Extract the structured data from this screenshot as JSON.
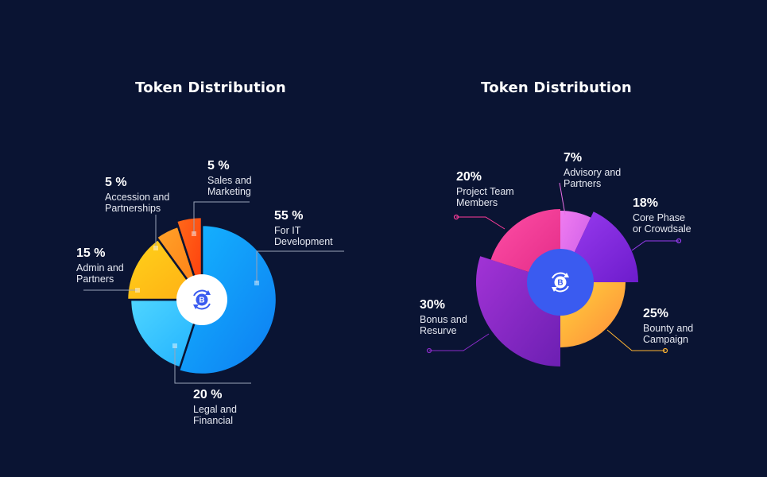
{
  "charts": [
    {
      "title": "Token Distribution"
    },
    {
      "title": "Token Distribution"
    }
  ],
  "colors": {
    "background": "#0a1433",
    "badge_blue": "#3a5bf0"
  },
  "chart_data": [
    {
      "type": "pie",
      "title": "Token Distribution",
      "unit": "%",
      "slices": [
        {
          "value": 55,
          "pct_label": "55 %",
          "label": [
            "For IT",
            "Development"
          ],
          "color": "#1a9bff"
        },
        {
          "value": 20,
          "pct_label": "20 %",
          "label": [
            "Legal and",
            "Financial"
          ],
          "color": "#35c8ff"
        },
        {
          "value": 15,
          "pct_label": "15 %",
          "label": [
            "Admin and",
            "Partners"
          ],
          "color": "#ffc21a"
        },
        {
          "value": 5,
          "pct_label": "5 %",
          "label": [
            "Accession and",
            "Partnerships"
          ],
          "color": "#ff8a1c"
        },
        {
          "value": 5,
          "pct_label": "5 %",
          "label": [
            "Sales and",
            "Marketing"
          ],
          "color": "#ff4f12"
        }
      ]
    },
    {
      "type": "pie",
      "title": "Token Distribution",
      "unit": "%",
      "slices": [
        {
          "value": 7,
          "pct_label": "7%",
          "label": [
            "Advisory and",
            "Partners"
          ],
          "color": "#e86ee6"
        },
        {
          "value": 18,
          "pct_label": "18%",
          "label": [
            "Core Phase",
            "or Crowdsale"
          ],
          "color": "#8a2ee8"
        },
        {
          "value": 25,
          "pct_label": "25%",
          "label": [
            "Bounty and",
            "Campaign"
          ],
          "color": "#ffb432"
        },
        {
          "value": 30,
          "pct_label": "30%",
          "label": [
            "Bonus and",
            "Resurve"
          ],
          "color": "#8b2bc9"
        },
        {
          "value": 20,
          "pct_label": "20%",
          "label": [
            "Project Team",
            "Members"
          ],
          "color": "#ff3c9a"
        }
      ]
    }
  ]
}
